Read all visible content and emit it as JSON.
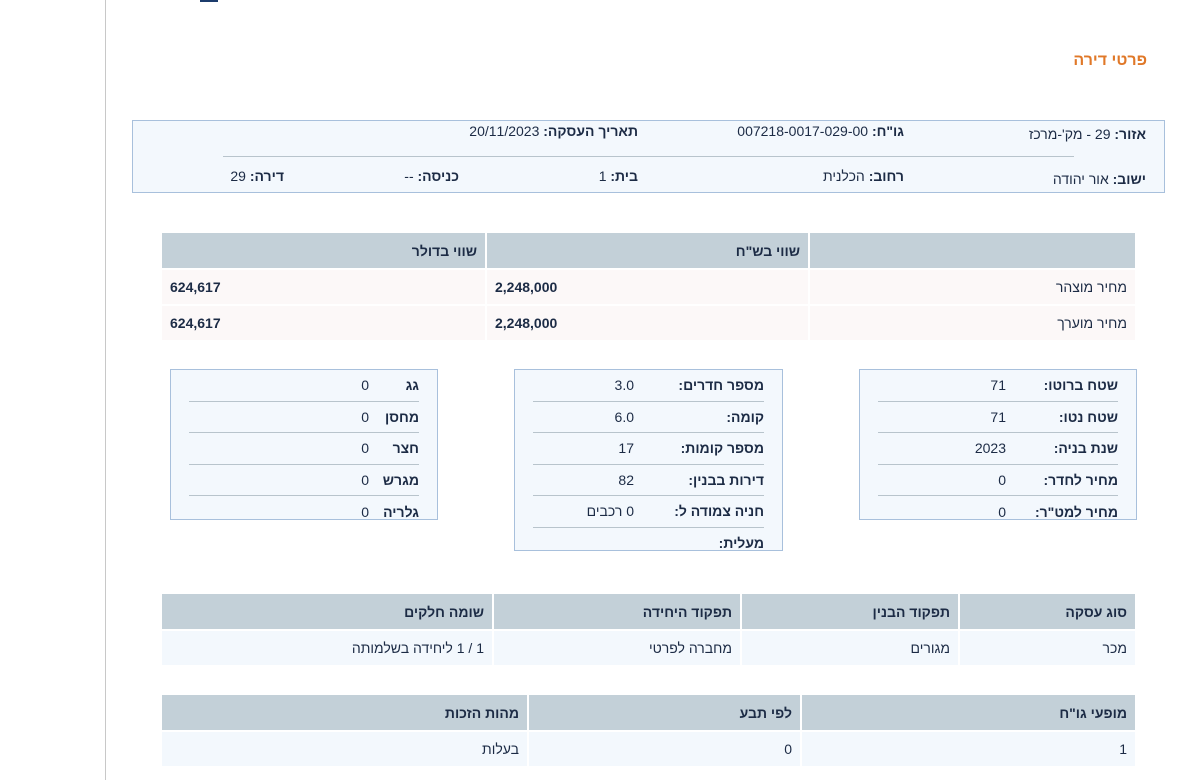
{
  "page_title": "פרטי דירה",
  "info": {
    "area_label": "אזור:",
    "area": "29 - מק'-מרכז",
    "gush_label": "גו\"ח:",
    "gush": "007218-0017-029-00",
    "date_label": "תאריך העסקה:",
    "date": "20/11/2023",
    "city_label": "ישוב:",
    "city": "אור יהודה",
    "street_label": "רחוב:",
    "street": "הכלנית",
    "house_label": "בית:",
    "house": "1",
    "entrance_label": "כניסה:",
    "entrance": "--",
    "apt_label": "דירה:",
    "apt": "29"
  },
  "prices": {
    "headers": [
      "",
      "שווי בש\"ח",
      "שווי בדולר"
    ],
    "rows": [
      [
        "מחיר מוצהר",
        "2,248,000",
        "624,617"
      ],
      [
        "מחיר מוערך",
        "2,248,000",
        "624,617"
      ]
    ]
  },
  "details_right": [
    [
      "שטח ברוטו:",
      "71"
    ],
    [
      "שטח נטו:",
      "71"
    ],
    [
      "שנת בניה:",
      "2023"
    ],
    [
      "מחיר לחדר:",
      "0"
    ],
    [
      "מחיר למט\"ר:",
      "0"
    ]
  ],
  "details_middle": [
    [
      "מספר חדרים:",
      "3.0"
    ],
    [
      "קומה:",
      "6.0"
    ],
    [
      "מספר קומות:",
      "17"
    ],
    [
      "דירות בבנין:",
      "82"
    ],
    [
      "חניה צמודה ל:",
      "0 רכבים"
    ],
    [
      "מעלית:",
      ""
    ]
  ],
  "details_left": [
    [
      "גג",
      "0"
    ],
    [
      "מחסן",
      "0"
    ],
    [
      "חצר",
      "0"
    ],
    [
      "מגרש",
      "0"
    ],
    [
      "גלריה",
      "0"
    ]
  ],
  "deal": {
    "headers": [
      "סוג עסקה",
      "תפקוד הבנין",
      "תפקוד היחידה",
      "שומה חלקים"
    ],
    "row": [
      "מכר",
      "מגורים",
      "מחברה לפרטי",
      "1 / 1 ליחידה בשלמותה"
    ]
  },
  "rights": {
    "headers": [
      "מופעי גו\"ח",
      "לפי תבע",
      "מהות הזכות"
    ],
    "row": [
      "1",
      "0",
      "בעלות"
    ]
  }
}
